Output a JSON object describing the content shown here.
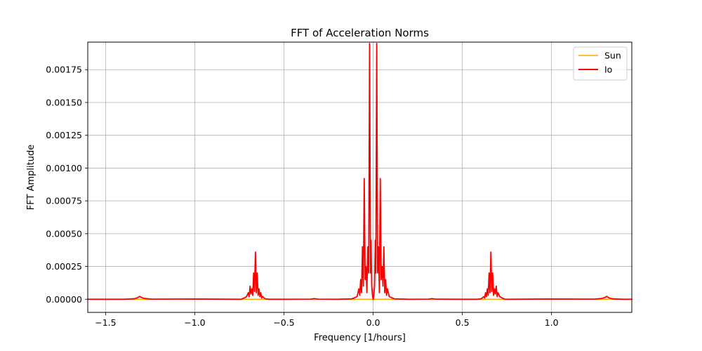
{
  "chart_data": {
    "type": "line",
    "title": "FFT of Acceleration Norms",
    "xlabel": "Frequency [1/hours]",
    "ylabel": "FFT Amplitude",
    "xlim": [
      -1.6,
      1.45
    ],
    "ylim": [
      -0.0001,
      0.00196
    ],
    "grid": true,
    "legend_position": "top-right",
    "x_ticks": [
      -1.5,
      -1.0,
      -0.5,
      0.0,
      0.5,
      1.0
    ],
    "x_tick_labels": [
      "−1.5",
      "−1.0",
      "−0.5",
      "0.0",
      "0.5",
      "1.0"
    ],
    "y_ticks": [
      0.0,
      0.00025,
      0.0005,
      0.00075,
      0.001,
      0.00125,
      0.0015,
      0.00175
    ],
    "y_tick_labels": [
      "0.00000",
      "0.00025",
      "0.00050",
      "0.00075",
      "0.00100",
      "0.00125",
      "0.00150",
      "0.00175"
    ],
    "series": [
      {
        "name": "Sun",
        "color": "#ffa500",
        "x": [
          -1.6,
          1.45
        ],
        "y": [
          0.0,
          0.0
        ]
      },
      {
        "name": "Io",
        "color": "#ff0000",
        "x": [
          -1.6,
          -1.4,
          -1.34,
          -1.32,
          -1.31,
          -1.3,
          -1.28,
          -1.24,
          -1.0,
          -0.74,
          -0.72,
          -0.71,
          -0.7,
          -0.695,
          -0.69,
          -0.685,
          -0.68,
          -0.675,
          -0.67,
          -0.665,
          -0.66,
          -0.655,
          -0.65,
          -0.645,
          -0.64,
          -0.635,
          -0.63,
          -0.625,
          -0.62,
          -0.61,
          -0.6,
          -0.58,
          -0.5,
          -0.35,
          -0.33,
          -0.31,
          -0.2,
          -0.12,
          -0.09,
          -0.08,
          -0.075,
          -0.07,
          -0.065,
          -0.06,
          -0.055,
          -0.05,
          -0.045,
          -0.04,
          -0.035,
          -0.03,
          -0.025,
          -0.02,
          -0.015,
          -0.012,
          -0.008,
          -0.003,
          0.0,
          0.003,
          0.008,
          0.012,
          0.015,
          0.02,
          0.025,
          0.03,
          0.035,
          0.04,
          0.045,
          0.05,
          0.055,
          0.06,
          0.065,
          0.07,
          0.075,
          0.08,
          0.09,
          0.12,
          0.2,
          0.31,
          0.33,
          0.35,
          0.5,
          0.58,
          0.6,
          0.61,
          0.62,
          0.625,
          0.63,
          0.635,
          0.64,
          0.645,
          0.65,
          0.655,
          0.66,
          0.665,
          0.67,
          0.675,
          0.68,
          0.685,
          0.69,
          0.695,
          0.7,
          0.71,
          0.72,
          0.74,
          1.0,
          1.24,
          1.28,
          1.3,
          1.31,
          1.32,
          1.34,
          1.4,
          1.45
        ],
        "y": [
          0.0,
          0.0,
          4e-06,
          1.2e-05,
          2.2e-05,
          1.4e-05,
          6e-06,
          1e-06,
          2e-06,
          0.0,
          1.2e-05,
          2e-05,
          5e-05,
          2e-05,
          0.0001,
          4e-05,
          8e-05,
          3e-05,
          0.0002,
          6e-05,
          0.00036,
          5e-05,
          0.0002,
          3e-05,
          8e-05,
          2e-05,
          5e-05,
          1e-05,
          2e-05,
          8e-06,
          2e-06,
          0.0,
          0.0,
          1e-06,
          5e-06,
          1e-06,
          0.0,
          3e-06,
          2e-05,
          8e-05,
          3e-05,
          0.00015,
          5e-05,
          0.0004,
          0.0001,
          0.00092,
          0.00015,
          0.00025,
          5e-05,
          0.0004,
          0.0002,
          0.00195,
          0.0002,
          0.00045,
          0.0001,
          2e-05,
          0.0,
          2e-05,
          0.0001,
          0.00045,
          0.0002,
          0.00195,
          0.0002,
          0.0004,
          5e-05,
          0.00092,
          0.00015,
          0.00025,
          0.0001,
          0.0004,
          5e-05,
          0.00015,
          3e-05,
          8e-05,
          2e-05,
          3e-06,
          0.0,
          1e-06,
          5e-06,
          1e-06,
          0.0,
          0.0,
          2e-06,
          8e-06,
          2e-05,
          1e-05,
          5e-05,
          2e-05,
          8e-05,
          3e-05,
          0.0002,
          5e-05,
          0.00036,
          6e-05,
          0.0002,
          3e-05,
          8e-05,
          4e-05,
          0.0001,
          2e-05,
          5e-05,
          2e-05,
          1.2e-05,
          0.0,
          2e-06,
          1e-06,
          6e-06,
          1.4e-05,
          2.2e-05,
          1.2e-05,
          4e-06,
          0.0,
          0.0
        ]
      }
    ]
  }
}
